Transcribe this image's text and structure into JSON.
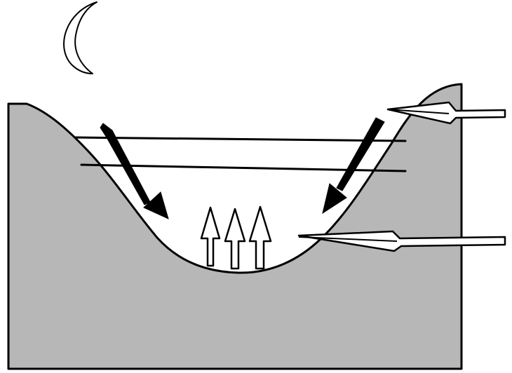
{
  "diagram": {
    "kind": "valley-night-cold-air-drainage",
    "colors": {
      "background": "#ffffff",
      "terrain": "#b7b7b7",
      "outline": "#000000",
      "outline_arrow_fill": "#ffffff",
      "slope_arrow_fill": "#000000",
      "layer_line": "#000000"
    },
    "elements": {
      "moon": "crescent-moon-icon",
      "valley": "valley-cross-section",
      "layers": [
        "upper-layer-line",
        "lower-layer-line"
      ],
      "slope_flows": [
        "left-downslope-arrow",
        "right-downslope-arrow"
      ],
      "rising_flows": [
        "rising-arrow-1",
        "rising-arrow-2",
        "rising-arrow-3"
      ],
      "pointer_arrows": [
        "upper-pointer-arrow",
        "lower-pointer-arrow"
      ]
    }
  }
}
